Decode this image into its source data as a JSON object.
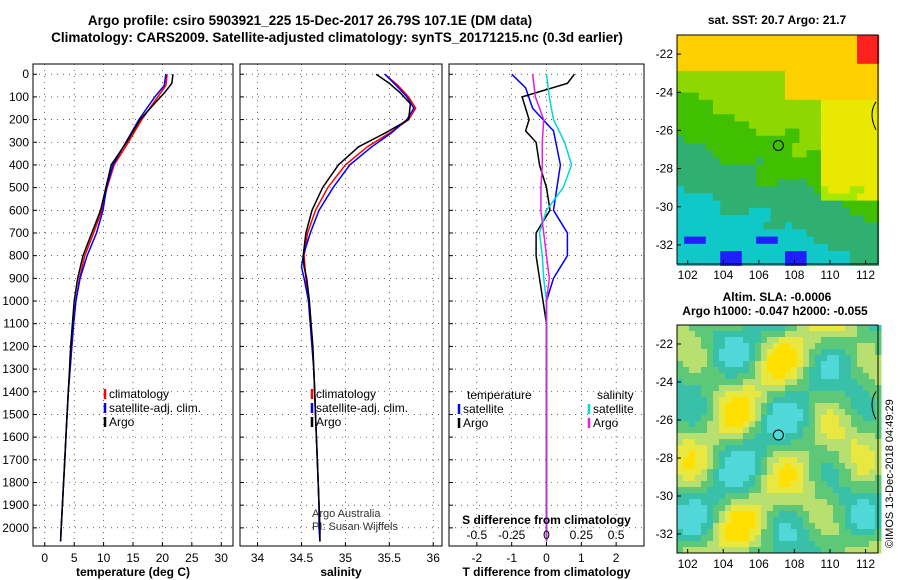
{
  "header": {
    "line1": "Argo profile: csiro 5903921_225 15-Dec-2017 26.79S 107.1E (DM data)",
    "line2": "Climatology: CARS2009. Satellite-adjusted climatology: synTS_20171215.nc (0.3d earlier)"
  },
  "colors": {
    "climatology": "#ff0000",
    "satellite": "#0000ff",
    "argo": "#000000",
    "salinity_satellite": "#00d8d8",
    "salinity_argo": "#e020e0"
  },
  "chart_data": [
    {
      "type": "line",
      "name": "temperature-profile",
      "xlabel": "temperature (deg C)",
      "ylabel": "",
      "xlim": [
        -2,
        32
      ],
      "ylim": [
        2080,
        0
      ],
      "xticks": [
        0,
        5,
        10,
        15,
        20,
        25,
        30
      ],
      "yticks": [
        0,
        100,
        200,
        300,
        400,
        500,
        600,
        700,
        800,
        900,
        1000,
        1100,
        1200,
        1300,
        1400,
        1500,
        1600,
        1700,
        1800,
        1900,
        2000
      ],
      "grid": true,
      "legend": [
        "climatology",
        "satellite-adj. clim.",
        "Argo"
      ],
      "series": [
        {
          "name": "climatology",
          "color": "#ff0000",
          "points": [
            [
              20.8,
              0
            ],
            [
              20.6,
              50
            ],
            [
              19.2,
              100
            ],
            [
              16.5,
              200
            ],
            [
              14.2,
              300
            ],
            [
              11.8,
              400
            ],
            [
              10.6,
              500
            ],
            [
              9.7,
              600
            ],
            [
              8.3,
              700
            ],
            [
              6.8,
              800
            ],
            [
              5.9,
              900
            ],
            [
              5.3,
              1000
            ],
            [
              4.9,
              1100
            ],
            [
              4.6,
              1200
            ],
            [
              4.3,
              1300
            ],
            [
              4.0,
              1400
            ],
            [
              3.8,
              1500
            ],
            [
              3.6,
              1600
            ],
            [
              3.4,
              1700
            ],
            [
              3.2,
              1800
            ],
            [
              3.0,
              1900
            ],
            [
              2.8,
              2000
            ],
            [
              2.7,
              2060
            ]
          ]
        },
        {
          "name": "satellite-adj. clim.",
          "color": "#0000ff",
          "points": [
            [
              20.6,
              0
            ],
            [
              20.3,
              50
            ],
            [
              18.7,
              100
            ],
            [
              16.0,
              200
            ],
            [
              13.8,
              300
            ],
            [
              11.6,
              400
            ],
            [
              10.5,
              500
            ],
            [
              9.9,
              600
            ],
            [
              8.8,
              700
            ],
            [
              7.2,
              800
            ],
            [
              6.0,
              900
            ],
            [
              5.3,
              1000
            ],
            [
              4.9,
              1100
            ],
            [
              4.6,
              1200
            ],
            [
              4.3,
              1300
            ],
            [
              4.0,
              1400
            ],
            [
              3.8,
              1500
            ],
            [
              3.6,
              1600
            ],
            [
              3.4,
              1700
            ],
            [
              3.2,
              1800
            ],
            [
              3.0,
              1900
            ],
            [
              2.8,
              2000
            ],
            [
              2.7,
              2060
            ]
          ]
        },
        {
          "name": "Argo",
          "color": "#000000",
          "points": [
            [
              21.8,
              0
            ],
            [
              21.6,
              40
            ],
            [
              20.4,
              80
            ],
            [
              19.0,
              120
            ],
            [
              16.2,
              200
            ],
            [
              13.9,
              300
            ],
            [
              11.3,
              400
            ],
            [
              10.4,
              500
            ],
            [
              9.5,
              600
            ],
            [
              8.0,
              700
            ],
            [
              6.5,
              800
            ],
            [
              5.6,
              900
            ],
            [
              5.0,
              1000
            ],
            [
              4.7,
              1100
            ],
            [
              4.4,
              1200
            ],
            [
              4.2,
              1300
            ],
            [
              4.0,
              1400
            ],
            [
              3.8,
              1500
            ],
            [
              3.6,
              1600
            ],
            [
              3.4,
              1700
            ],
            [
              3.2,
              1800
            ],
            [
              3.0,
              1900
            ],
            [
              2.8,
              2000
            ],
            [
              2.7,
              2060
            ]
          ]
        }
      ]
    },
    {
      "type": "line",
      "name": "salinity-profile",
      "xlabel": "salinity",
      "ylabel": "",
      "xlim": [
        33.8,
        36.1
      ],
      "ylim": [
        2080,
        0
      ],
      "xticks": [
        34,
        34.5,
        35,
        35.5,
        36
      ],
      "xticklabels": [
        "34",
        "34.5",
        "35",
        "35.5",
        "36"
      ],
      "grid": true,
      "legend": [
        "climatology",
        "satellite-adj. clim.",
        "Argo"
      ],
      "annotations": [
        "Argo Australia",
        "PI: Susan Wijffels"
      ],
      "series": [
        {
          "name": "climatology",
          "color": "#ff0000",
          "points": [
            [
              35.45,
              0
            ],
            [
              35.6,
              50
            ],
            [
              35.72,
              100
            ],
            [
              35.8,
              150
            ],
            [
              35.72,
              200
            ],
            [
              35.5,
              260
            ],
            [
              35.25,
              320
            ],
            [
              35.0,
              400
            ],
            [
              34.8,
              500
            ],
            [
              34.66,
              600
            ],
            [
              34.57,
              700
            ],
            [
              34.53,
              800
            ],
            [
              34.55,
              900
            ],
            [
              34.58,
              1000
            ],
            [
              34.6,
              1100
            ],
            [
              34.62,
              1200
            ],
            [
              34.64,
              1300
            ],
            [
              34.65,
              1400
            ],
            [
              34.66,
              1500
            ],
            [
              34.67,
              1600
            ],
            [
              34.68,
              1700
            ],
            [
              34.69,
              1800
            ],
            [
              34.7,
              1900
            ],
            [
              34.71,
              2000
            ],
            [
              34.71,
              2060
            ]
          ]
        },
        {
          "name": "satellite-adj. clim.",
          "color": "#0000ff",
          "points": [
            [
              35.45,
              0
            ],
            [
              35.58,
              50
            ],
            [
              35.7,
              100
            ],
            [
              35.78,
              150
            ],
            [
              35.7,
              200
            ],
            [
              35.52,
              260
            ],
            [
              35.3,
              320
            ],
            [
              35.05,
              400
            ],
            [
              34.86,
              500
            ],
            [
              34.7,
              600
            ],
            [
              34.6,
              700
            ],
            [
              34.52,
              800
            ],
            [
              34.5,
              850
            ],
            [
              34.53,
              900
            ],
            [
              34.58,
              1000
            ],
            [
              34.6,
              1100
            ],
            [
              34.62,
              1200
            ],
            [
              34.64,
              1300
            ],
            [
              34.65,
              1400
            ],
            [
              34.66,
              1500
            ],
            [
              34.67,
              1600
            ],
            [
              34.68,
              1700
            ],
            [
              34.69,
              1800
            ],
            [
              34.7,
              1900
            ],
            [
              34.7,
              2000
            ],
            [
              34.71,
              2060
            ]
          ]
        },
        {
          "name": "Argo",
          "color": "#000000",
          "points": [
            [
              35.35,
              0
            ],
            [
              35.5,
              40
            ],
            [
              35.62,
              80
            ],
            [
              35.74,
              130
            ],
            [
              35.72,
              200
            ],
            [
              35.45,
              260
            ],
            [
              35.15,
              320
            ],
            [
              34.92,
              400
            ],
            [
              34.74,
              500
            ],
            [
              34.62,
              600
            ],
            [
              34.55,
              700
            ],
            [
              34.52,
              800
            ],
            [
              34.53,
              850
            ],
            [
              34.56,
              900
            ],
            [
              34.59,
              1000
            ],
            [
              34.61,
              1100
            ],
            [
              34.63,
              1200
            ],
            [
              34.64,
              1300
            ],
            [
              34.65,
              1400
            ],
            [
              34.66,
              1500
            ],
            [
              34.67,
              1600
            ],
            [
              34.68,
              1700
            ],
            [
              34.69,
              1800
            ],
            [
              34.7,
              1900
            ],
            [
              34.71,
              2000
            ],
            [
              34.71,
              2060
            ]
          ]
        }
      ]
    },
    {
      "type": "line",
      "name": "difference-profile",
      "xlabel": "T difference from climatology",
      "top_xlabel": "S difference from climatology",
      "xlim": [
        -2.8,
        2.8
      ],
      "ylim": [
        2080,
        0
      ],
      "xticks": [
        -2,
        -1,
        0,
        1,
        2
      ],
      "top_xticks": [
        -0.5,
        -0.25,
        0,
        0.25,
        0.5
      ],
      "top_xticklabels": [
        "-0.5",
        "-0.25",
        "0",
        "0.25",
        "0.5"
      ],
      "grid": true,
      "legend_left": [
        "temperature",
        "satellite",
        "Argo"
      ],
      "legend_right": [
        "salinity",
        "satellite",
        "Argo"
      ],
      "series": [
        {
          "name": "temperature satellite",
          "color": "#0000ff",
          "points": [
            [
              -1.0,
              0
            ],
            [
              -0.6,
              60
            ],
            [
              -0.4,
              150
            ],
            [
              0.2,
              250
            ],
            [
              0.4,
              400
            ],
            [
              0.3,
              500
            ],
            [
              0.2,
              600
            ],
            [
              0.6,
              700
            ],
            [
              0.6,
              800
            ],
            [
              0.2,
              900
            ],
            [
              0.0,
              1000
            ],
            [
              0.0,
              2060
            ]
          ]
        },
        {
          "name": "temperature Argo",
          "color": "#000000",
          "points": [
            [
              0.8,
              0
            ],
            [
              0.6,
              40
            ],
            [
              -0.7,
              100
            ],
            [
              -0.5,
              200
            ],
            [
              -0.6,
              250
            ],
            [
              -0.3,
              300
            ],
            [
              -0.2,
              400
            ],
            [
              0.0,
              500
            ],
            [
              0.1,
              600
            ],
            [
              -0.3,
              700
            ],
            [
              -0.3,
              800
            ],
            [
              -0.2,
              900
            ],
            [
              -0.1,
              1000
            ],
            [
              0.0,
              1100
            ],
            [
              0.0,
              2060
            ]
          ]
        },
        {
          "name": "salinity satellite",
          "color": "#00d8d8",
          "points": [
            [
              0.0,
              0
            ],
            [
              0.02,
              100
            ],
            [
              0.05,
              200
            ],
            [
              0.13,
              300
            ],
            [
              0.18,
              400
            ],
            [
              0.12,
              500
            ],
            [
              0.0,
              600
            ],
            [
              -0.05,
              700
            ],
            [
              -0.03,
              800
            ],
            [
              -0.02,
              900
            ],
            [
              0.0,
              1000
            ],
            [
              0.0,
              2060
            ]
          ]
        },
        {
          "name": "salinity Argo",
          "color": "#e020e0",
          "points": [
            [
              -0.1,
              0
            ],
            [
              -0.08,
              100
            ],
            [
              -0.02,
              200
            ],
            [
              -0.03,
              300
            ],
            [
              -0.03,
              400
            ],
            [
              -0.04,
              500
            ],
            [
              -0.04,
              600
            ],
            [
              -0.02,
              700
            ],
            [
              0.0,
              800
            ],
            [
              0.02,
              900
            ],
            [
              0.0,
              1000
            ],
            [
              0.0,
              2060
            ]
          ]
        }
      ]
    }
  ],
  "sst_map": {
    "title": "sat. SST: 20.7 Argo: 21.7",
    "xticks": [
      "102",
      "104",
      "106",
      "108",
      "110",
      "112"
    ],
    "yticks": [
      "-22",
      "-24",
      "-26",
      "-28",
      "-30",
      "-32"
    ],
    "marker": {
      "lon": 107.1,
      "lat": -26.79
    }
  },
  "sla_map": {
    "title1": "Altim. SLA: -0.0006",
    "title2": "Argo h1000: -0.047 h2000: -0.055",
    "xticks": [
      "102",
      "104",
      "106",
      "108",
      "110",
      "112"
    ],
    "yticks": [
      "-22",
      "-24",
      "-26",
      "-28",
      "-30",
      "-32"
    ],
    "marker": {
      "lon": 107.1,
      "lat": -26.79
    }
  },
  "watermark": "©IMOS 13-Dec-2018 04:49:29"
}
